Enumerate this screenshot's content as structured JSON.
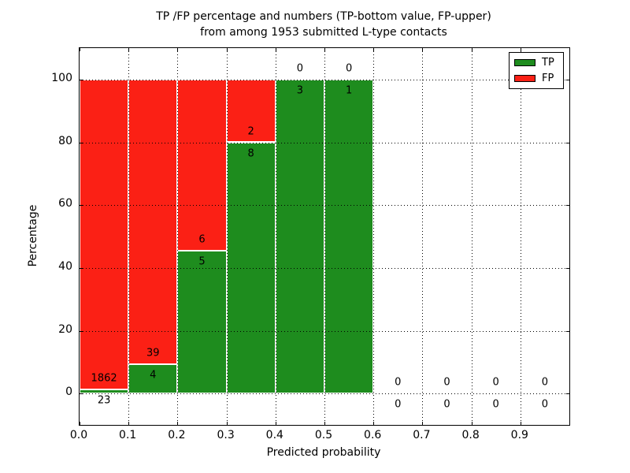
{
  "title": {
    "line1": "TP /FP percentage and numbers (TP-bottom value, FP-upper)",
    "line2": "from among 1953 submitted L-type contacts"
  },
  "axes": {
    "xlabel": "Predicted probability",
    "ylabel": "Percentage",
    "xticks": [
      "0.0",
      "0.1",
      "0.2",
      "0.3",
      "0.4",
      "0.5",
      "0.6",
      "0.7",
      "0.8",
      "0.9"
    ],
    "yticks": [
      "0",
      "20",
      "40",
      "60",
      "80",
      "100"
    ]
  },
  "legend": [
    {
      "name": "TP",
      "color": "#1e8c1e"
    },
    {
      "name": "FP",
      "color": "#fb2015"
    }
  ],
  "chart_data": {
    "type": "bar",
    "stacked": true,
    "title": "TP /FP percentage and numbers (TP-bottom value, FP-upper) from among 1953 submitted L-type contacts",
    "xlabel": "Predicted probability",
    "ylabel": "Percentage",
    "xlim": [
      0.0,
      1.0
    ],
    "ylim": [
      -10,
      110
    ],
    "grid": true,
    "legend_position": "upper right",
    "colors": {
      "tp": "#1e8c1e",
      "fp": "#fb2015",
      "bar_edge": "#ffffff"
    },
    "total_contacts": 1953,
    "bins": [
      {
        "x_start": 0.0,
        "x_end": 0.1,
        "tp": 23,
        "fp": 1862,
        "tp_pct": 1.2
      },
      {
        "x_start": 0.1,
        "x_end": 0.2,
        "tp": 4,
        "fp": 39,
        "tp_pct": 9.3
      },
      {
        "x_start": 0.2,
        "x_end": 0.3,
        "tp": 5,
        "fp": 6,
        "tp_pct": 45.5
      },
      {
        "x_start": 0.3,
        "x_end": 0.4,
        "tp": 8,
        "fp": 2,
        "tp_pct": 80.0
      },
      {
        "x_start": 0.4,
        "x_end": 0.5,
        "tp": 3,
        "fp": 0,
        "tp_pct": 100.0
      },
      {
        "x_start": 0.5,
        "x_end": 0.6,
        "tp": 1,
        "fp": 0,
        "tp_pct": 100.0
      },
      {
        "x_start": 0.6,
        "x_end": 0.7,
        "tp": 0,
        "fp": 0,
        "tp_pct": null
      },
      {
        "x_start": 0.7,
        "x_end": 0.8,
        "tp": 0,
        "fp": 0,
        "tp_pct": null
      },
      {
        "x_start": 0.8,
        "x_end": 0.9,
        "tp": 0,
        "fp": 0,
        "tp_pct": null
      },
      {
        "x_start": 0.9,
        "x_end": 1.0,
        "tp": 0,
        "fp": 0,
        "tp_pct": null
      }
    ]
  }
}
